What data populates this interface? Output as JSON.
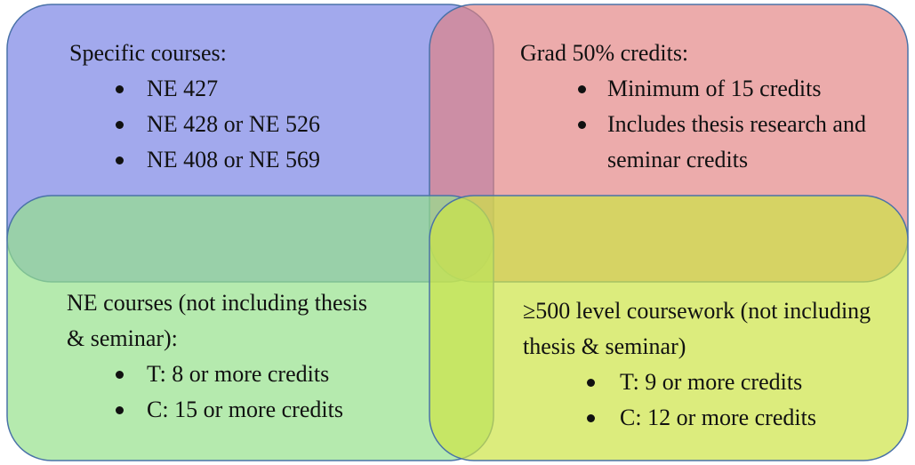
{
  "quadrants": [
    {
      "heading": "Specific courses:",
      "items": [
        "NE 427",
        "NE 428 or NE 526",
        "NE 408 or NE 569"
      ]
    },
    {
      "heading": "Grad 50% credits:",
      "items": [
        "Minimum of 15 credits",
        "Includes thesis research and seminar credits"
      ]
    },
    {
      "heading": "NE courses (not including thesis & seminar):",
      "items": [
        "T: 8 or more credits",
        "C: 15 or more credits"
      ]
    },
    {
      "heading": "≥500 level coursework (not including thesis & seminar)",
      "items": [
        "T: 9 or more credits",
        "C: 12 or more credits"
      ]
    }
  ]
}
